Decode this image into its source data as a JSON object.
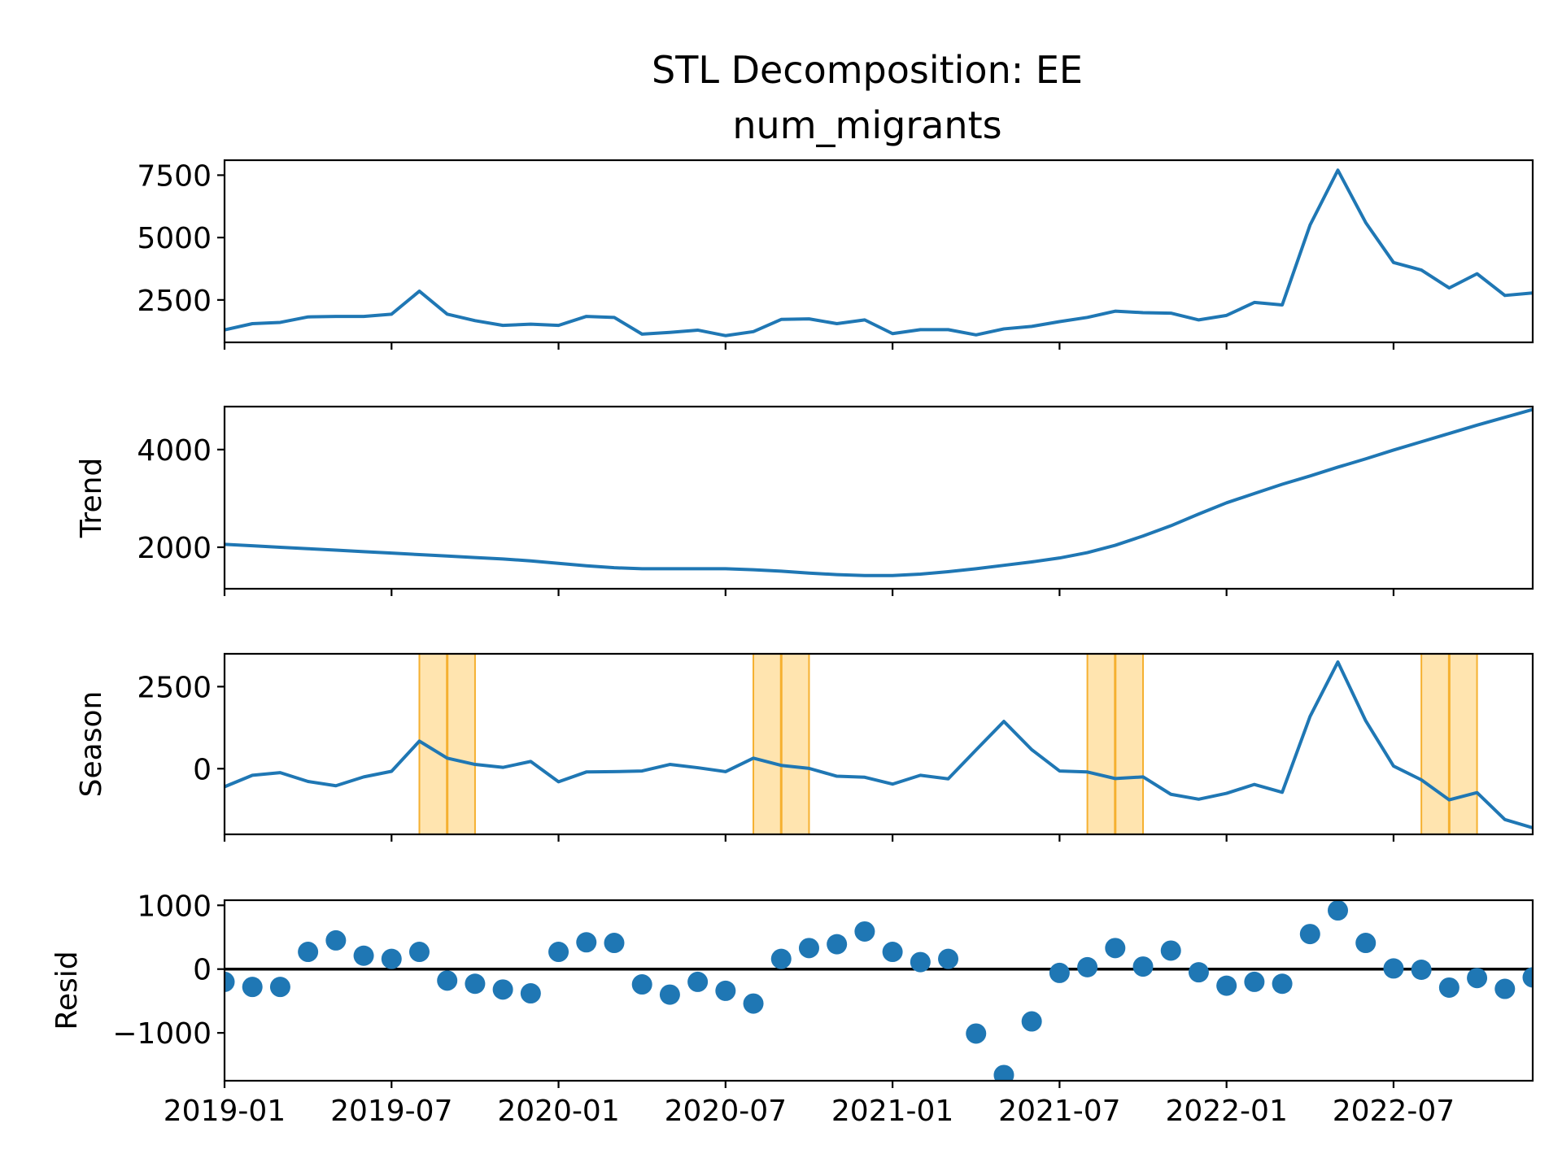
{
  "chart_data": {
    "type": "line",
    "title": "STL Decomposition: EE",
    "subtitle": "num_migrants",
    "colors": {
      "series": "#1f77b4",
      "highlight_fill": "#ffc34d",
      "highlight_line": "#f5b030",
      "zero_line": "#000000"
    },
    "x": [
      "2019-01",
      "2019-02",
      "2019-03",
      "2019-04",
      "2019-05",
      "2019-06",
      "2019-07",
      "2019-08",
      "2019-09",
      "2019-10",
      "2019-11",
      "2019-12",
      "2020-01",
      "2020-02",
      "2020-03",
      "2020-04",
      "2020-05",
      "2020-06",
      "2020-07",
      "2020-08",
      "2020-09",
      "2020-10",
      "2020-11",
      "2020-12",
      "2021-01",
      "2021-02",
      "2021-03",
      "2021-04",
      "2021-05",
      "2021-06",
      "2021-07",
      "2021-08",
      "2021-09",
      "2021-10",
      "2021-11",
      "2021-12",
      "2022-01",
      "2022-02",
      "2022-03",
      "2022-04",
      "2022-05",
      "2022-06",
      "2022-07",
      "2022-08",
      "2022-09",
      "2022-10",
      "2022-11",
      "2022-12"
    ],
    "x_tick_labels": [
      "2019-01",
      "2019-07",
      "2020-01",
      "2020-07",
      "2021-01",
      "2021-07",
      "2022-01",
      "2022-07"
    ],
    "xlim": [
      "2019-01",
      "2022-12"
    ],
    "highlight_bands": [
      {
        "start": "2019-08",
        "end": "2019-10",
        "center": "2019-09"
      },
      {
        "start": "2020-08",
        "end": "2020-10",
        "center": "2020-09"
      },
      {
        "start": "2021-08",
        "end": "2021-10",
        "center": "2021-09"
      },
      {
        "start": "2022-08",
        "end": "2022-10",
        "center": "2022-09"
      }
    ],
    "panels": [
      {
        "id": "observed",
        "ylabel": "",
        "style": "line",
        "ylim": [
          800,
          8100
        ],
        "yticks": [
          2500,
          5000,
          7500
        ],
        "ytick_labels": [
          "2500",
          "5000",
          "7500"
        ],
        "values": [
          1300,
          1550,
          1600,
          1820,
          1840,
          1840,
          1930,
          2850,
          1930,
          1670,
          1480,
          1530,
          1480,
          1840,
          1800,
          1130,
          1200,
          1290,
          1070,
          1230,
          1720,
          1740,
          1550,
          1700,
          1150,
          1310,
          1310,
          1100,
          1340,
          1440,
          1630,
          1800,
          2050,
          1990,
          1970,
          1700,
          1880,
          2400,
          2300,
          5500,
          7700,
          5600,
          4000,
          3700,
          2980,
          3550,
          2680,
          2780
        ]
      },
      {
        "id": "trend",
        "ylabel": "Trend",
        "style": "line",
        "ylim": [
          1150,
          4880
        ],
        "yticks": [
          2000,
          4000
        ],
        "ytick_labels": [
          "2000",
          "4000"
        ],
        "values": [
          2060,
          2030,
          2000,
          1970,
          1940,
          1910,
          1880,
          1850,
          1820,
          1790,
          1760,
          1720,
          1670,
          1620,
          1580,
          1560,
          1560,
          1560,
          1560,
          1540,
          1510,
          1470,
          1440,
          1420,
          1420,
          1450,
          1500,
          1560,
          1630,
          1700,
          1780,
          1890,
          2040,
          2230,
          2440,
          2680,
          2910,
          3100,
          3290,
          3460,
          3640,
          3810,
          3990,
          4160,
          4330,
          4500,
          4660,
          4820
        ]
      },
      {
        "id": "season",
        "ylabel": "Season",
        "style": "line",
        "ylim": [
          -2000,
          3500
        ],
        "yticks": [
          0,
          2500
        ],
        "ytick_labels": [
          "0",
          "2500"
        ],
        "values": [
          -550,
          -200,
          -120,
          -390,
          -520,
          -250,
          -80,
          840,
          320,
          130,
          40,
          220,
          -400,
          -100,
          -90,
          -70,
          130,
          30,
          -90,
          320,
          100,
          10,
          -230,
          -260,
          -470,
          -200,
          -310,
          570,
          1440,
          580,
          -70,
          -100,
          -300,
          -250,
          -780,
          -930,
          -750,
          -480,
          -720,
          1590,
          3250,
          1460,
          80,
          -340,
          -950,
          -730,
          -1550,
          -1800
        ]
      },
      {
        "id": "resid",
        "ylabel": "Resid",
        "style": "scatter",
        "ylim": [
          -1750,
          1080
        ],
        "yticks": [
          -1000,
          0,
          1000
        ],
        "ytick_labels": [
          "−1000",
          "0",
          "1000"
        ],
        "zero_line": 0,
        "values": [
          -200,
          -280,
          -280,
          270,
          450,
          210,
          160,
          270,
          -180,
          -230,
          -320,
          -380,
          270,
          420,
          410,
          -240,
          -400,
          -200,
          -340,
          -540,
          160,
          330,
          390,
          590,
          270,
          110,
          160,
          -1010,
          -1660,
          -820,
          -60,
          30,
          330,
          40,
          290,
          -50,
          -260,
          -200,
          -230,
          550,
          920,
          410,
          10,
          -10,
          -290,
          -140,
          -310,
          -130
        ]
      }
    ]
  }
}
